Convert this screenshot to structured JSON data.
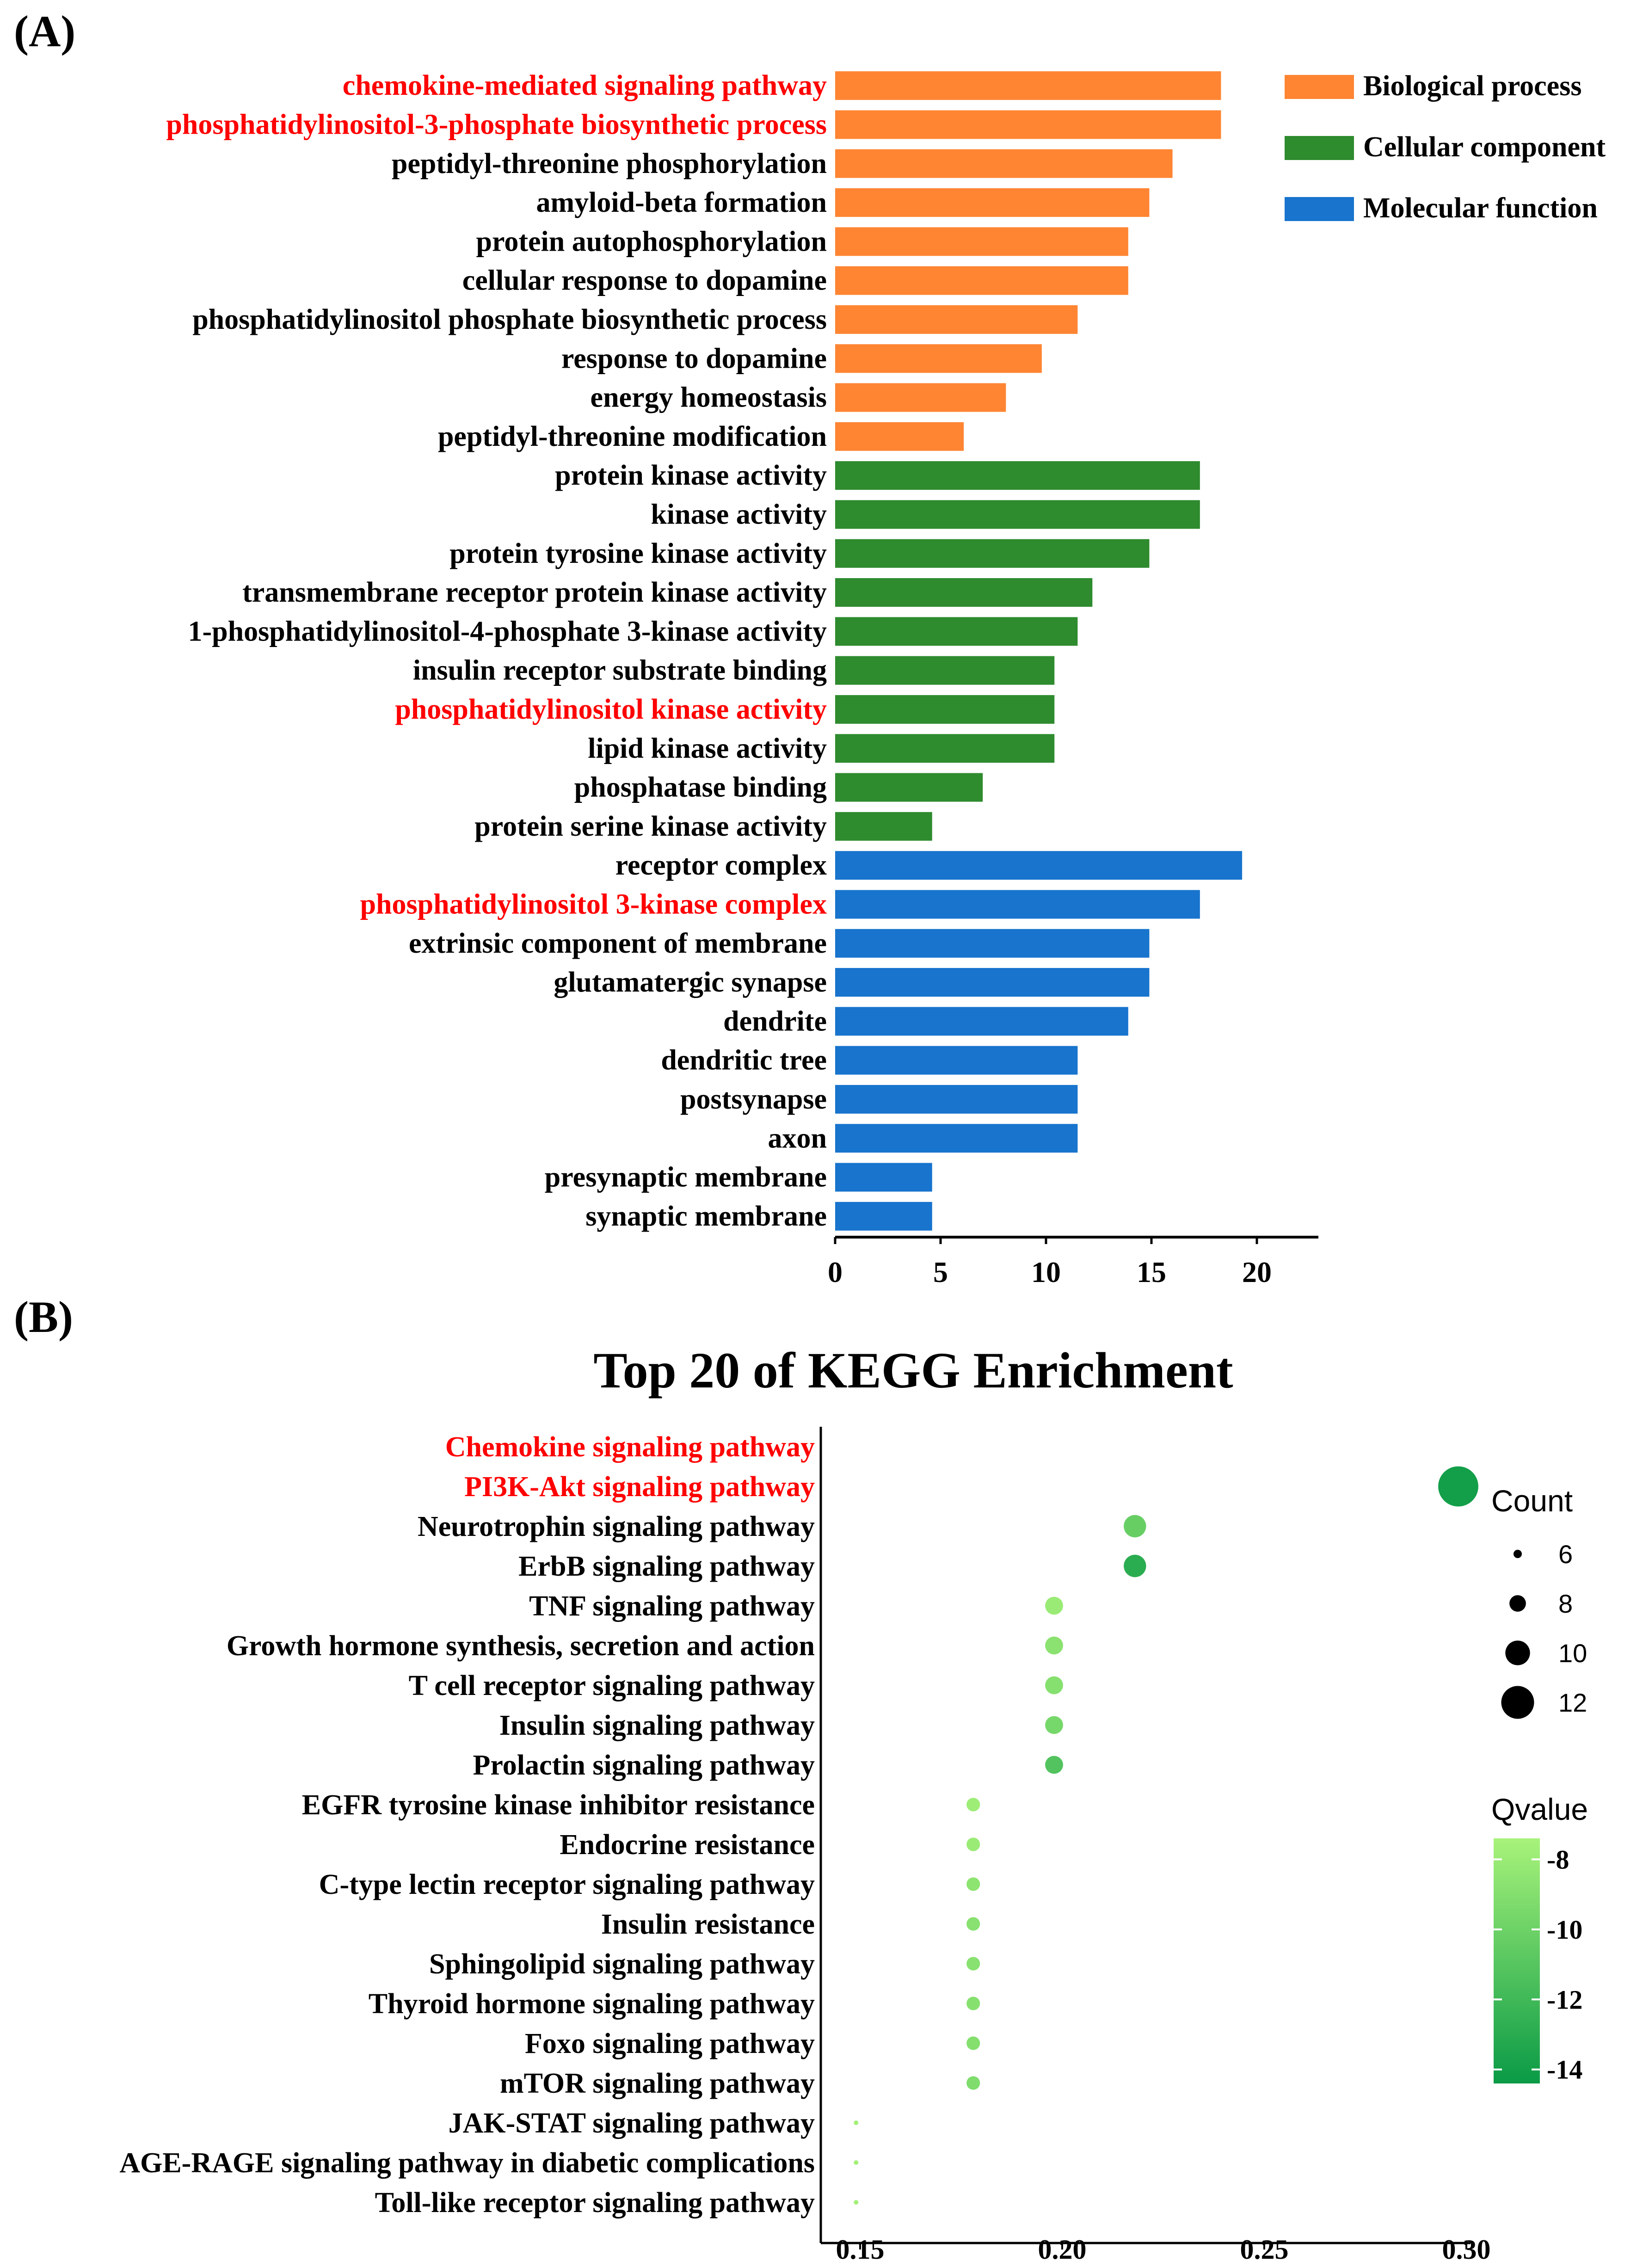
{
  "chart_data": [
    {
      "panel_label": "(A)",
      "type": "bar",
      "orientation": "horizontal",
      "title": "",
      "xlabel": "",
      "ylabel": "",
      "xlim": [
        0,
        22.5
      ],
      "xticks": [
        "0",
        "5",
        "10",
        "15",
        "20"
      ],
      "legend_position": "top-right",
      "highlight_color": "#ff0000",
      "groups": [
        {
          "name": "Biological process",
          "color": "#ff8533"
        },
        {
          "name": "Cellular component",
          "color": "#2e8b2e"
        },
        {
          "name": "Molecular function",
          "color": "#1874cd"
        }
      ],
      "bars": [
        {
          "label": "chemokine-mediated signaling pathway",
          "value": 18.3,
          "group": 0,
          "highlight": true
        },
        {
          "label": "phosphatidylinositol-3-phosphate biosynthetic process",
          "value": 18.3,
          "group": 0,
          "highlight": true
        },
        {
          "label": "peptidyl-threonine phosphorylation",
          "value": 16.0,
          "group": 0,
          "highlight": false
        },
        {
          "label": "amyloid-beta formation",
          "value": 14.9,
          "group": 0,
          "highlight": false
        },
        {
          "label": "protein autophosphorylation",
          "value": 13.9,
          "group": 0,
          "highlight": false
        },
        {
          "label": "cellular response to dopamine",
          "value": 13.9,
          "group": 0,
          "highlight": false
        },
        {
          "label": "phosphatidylinositol phosphate biosynthetic process",
          "value": 11.5,
          "group": 0,
          "highlight": false
        },
        {
          "label": "response to dopamine",
          "value": 9.8,
          "group": 0,
          "highlight": false
        },
        {
          "label": "energy homeostasis",
          "value": 8.1,
          "group": 0,
          "highlight": false
        },
        {
          "label": "peptidyl-threonine modification",
          "value": 6.1,
          "group": 0,
          "highlight": false
        },
        {
          "label": "protein kinase activity",
          "value": 17.3,
          "group": 1,
          "highlight": false
        },
        {
          "label": "kinase activity",
          "value": 17.3,
          "group": 1,
          "highlight": false
        },
        {
          "label": "protein tyrosine kinase activity",
          "value": 14.9,
          "group": 1,
          "highlight": false
        },
        {
          "label": "transmembrane receptor protein kinase activity",
          "value": 12.2,
          "group": 1,
          "highlight": false
        },
        {
          "label": "1-phosphatidylinositol-4-phosphate 3-kinase activity",
          "value": 11.5,
          "group": 1,
          "highlight": false
        },
        {
          "label": "insulin receptor substrate binding",
          "value": 10.4,
          "group": 1,
          "highlight": false
        },
        {
          "label": "phosphatidylinositol kinase activity",
          "value": 10.4,
          "group": 1,
          "highlight": true
        },
        {
          "label": "lipid kinase activity",
          "value": 10.4,
          "group": 1,
          "highlight": false
        },
        {
          "label": "phosphatase binding",
          "value": 7.0,
          "group": 1,
          "highlight": false
        },
        {
          "label": "protein serine kinase activity",
          "value": 4.6,
          "group": 1,
          "highlight": false
        },
        {
          "label": "receptor complex",
          "value": 19.3,
          "group": 2,
          "highlight": false
        },
        {
          "label": "phosphatidylinositol 3-kinase complex",
          "value": 17.3,
          "group": 2,
          "highlight": true
        },
        {
          "label": "extrinsic component of membrane",
          "value": 14.9,
          "group": 2,
          "highlight": false
        },
        {
          "label": "glutamatergic synapse",
          "value": 14.9,
          "group": 2,
          "highlight": false
        },
        {
          "label": "dendrite",
          "value": 13.9,
          "group": 2,
          "highlight": false
        },
        {
          "label": "dendritic tree",
          "value": 11.5,
          "group": 2,
          "highlight": false
        },
        {
          "label": "postsynapse",
          "value": 11.5,
          "group": 2,
          "highlight": false
        },
        {
          "label": "axon",
          "value": 11.5,
          "group": 2,
          "highlight": false
        },
        {
          "label": "presynaptic membrane",
          "value": 4.6,
          "group": 2,
          "highlight": false
        },
        {
          "label": "synaptic membrane",
          "value": 4.6,
          "group": 2,
          "highlight": false
        }
      ]
    },
    {
      "panel_label": "(B)",
      "type": "scatter",
      "title": "Top 20 of KEGG Enrichment",
      "xlabel": "",
      "ylabel": "",
      "xlim": [
        0.14,
        0.3
      ],
      "xticks": [
        "0.15",
        "0.20",
        "0.25",
        "0.30"
      ],
      "highlight_color": "#ff0000",
      "size_legend": {
        "title": "Count",
        "values": [
          "6",
          "8",
          "10",
          "12"
        ]
      },
      "color_legend": {
        "title": "Qvalue",
        "ticks": [
          "-8",
          "-10",
          "-12",
          "-14"
        ],
        "range": [
          -14.4,
          -7.4
        ],
        "low_color": "#0a9a46",
        "high_color": "#a8f37a"
      },
      "points": [
        {
          "label": "Chemokine signaling pathway",
          "x": null,
          "count": null,
          "qvalue": null,
          "highlight": true
        },
        {
          "label": "PI3K-Akt signaling pathway",
          "x": 0.298,
          "count": 13,
          "qvalue": -14.0,
          "highlight": true
        },
        {
          "label": "Neurotrophin signaling pathway",
          "x": 0.218,
          "count": 9,
          "qvalue": -10.3,
          "highlight": false
        },
        {
          "label": "ErbB signaling pathway",
          "x": 0.218,
          "count": 9,
          "qvalue": -13.0,
          "highlight": false
        },
        {
          "label": "TNF signaling pathway",
          "x": 0.198,
          "count": 8,
          "qvalue": -8.0,
          "highlight": false
        },
        {
          "label": "Growth hormone synthesis, secretion and action",
          "x": 0.198,
          "count": 8,
          "qvalue": -8.7,
          "highlight": false
        },
        {
          "label": "T cell receptor signaling pathway",
          "x": 0.198,
          "count": 8,
          "qvalue": -8.9,
          "highlight": false
        },
        {
          "label": "Insulin signaling pathway",
          "x": 0.198,
          "count": 8,
          "qvalue": -9.6,
          "highlight": false
        },
        {
          "label": "Prolactin signaling pathway",
          "x": 0.198,
          "count": 8,
          "qvalue": -11.2,
          "highlight": false
        },
        {
          "label": "EGFR tyrosine kinase inhibitor resistance",
          "x": 0.178,
          "count": 7,
          "qvalue": -7.9,
          "highlight": false
        },
        {
          "label": "Endocrine resistance",
          "x": 0.178,
          "count": 7,
          "qvalue": -8.0,
          "highlight": false
        },
        {
          "label": "C-type lectin receptor signaling pathway",
          "x": 0.178,
          "count": 7,
          "qvalue": -8.6,
          "highlight": false
        },
        {
          "label": "Insulin resistance",
          "x": 0.178,
          "count": 7,
          "qvalue": -8.8,
          "highlight": false
        },
        {
          "label": "Sphingolipid signaling pathway",
          "x": 0.178,
          "count": 7,
          "qvalue": -8.8,
          "highlight": false
        },
        {
          "label": "Thyroid hormone signaling pathway",
          "x": 0.178,
          "count": 7,
          "qvalue": -8.9,
          "highlight": false
        },
        {
          "label": "Foxo signaling pathway",
          "x": 0.178,
          "count": 7,
          "qvalue": -9.0,
          "highlight": false
        },
        {
          "label": "mTOR signaling pathway",
          "x": 0.178,
          "count": 7,
          "qvalue": -9.2,
          "highlight": false
        },
        {
          "label": "JAK-STAT signaling pathway",
          "x": 0.149,
          "count": 5,
          "qvalue": -7.6,
          "highlight": false
        },
        {
          "label": "AGE-RAGE signaling pathway in diabetic complications",
          "x": 0.149,
          "count": 5,
          "qvalue": -7.6,
          "highlight": false
        },
        {
          "label": "Toll-like receptor signaling pathway",
          "x": 0.149,
          "count": 5,
          "qvalue": -7.6,
          "highlight": false
        }
      ]
    }
  ]
}
